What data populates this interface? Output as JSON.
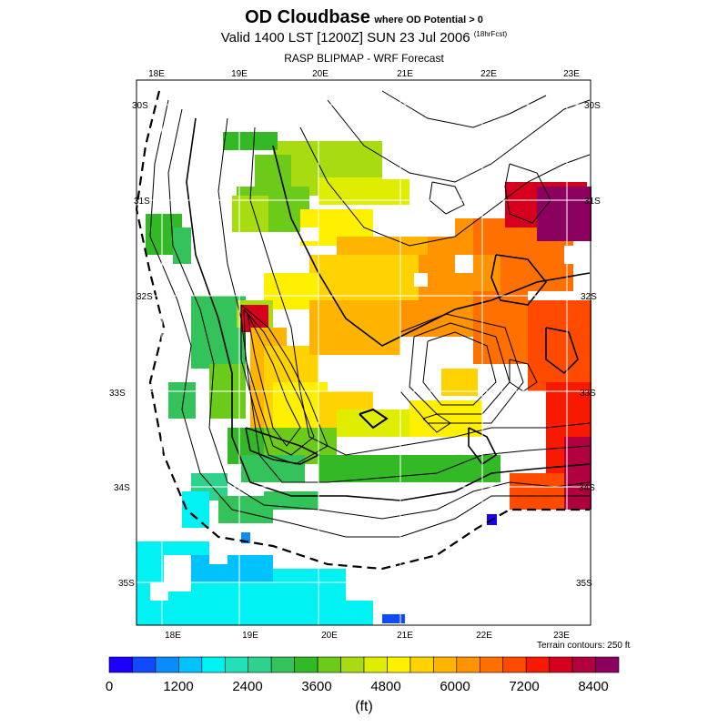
{
  "header": {
    "title": "OD Cloudbase",
    "title_qualifier": "where OD Potential > 0",
    "valid_line": "Valid 1400 LST [1200Z] SUN 23 Jul 2006",
    "forecast_hours": "(18hrFcst)",
    "model_line": "RASP BLIPMAP - WRF Forecast"
  },
  "map": {
    "lon_labels_top": [
      "18E",
      "19E",
      "20E",
      "21E",
      "22E",
      "23E"
    ],
    "lon_labels_bottom": [
      "18E",
      "19E",
      "20E",
      "21E",
      "22E",
      "23E"
    ],
    "lat_labels_left": [
      "30S",
      "31S",
      "32S",
      "33S",
      "34S",
      "35S"
    ],
    "lat_labels_right": [
      "30S",
      "31S",
      "32S",
      "33S",
      "34S",
      "35S"
    ],
    "terrain_note": "Terrain contours: 250 ft"
  },
  "colorbar": {
    "colors": [
      "#1a00ff",
      "#0f4aff",
      "#0a8cff",
      "#00c2ff",
      "#00f2f2",
      "#22e0b8",
      "#2ed28c",
      "#33c35a",
      "#33b826",
      "#6ccb1a",
      "#a8dc10",
      "#dfee00",
      "#fff000",
      "#ffd200",
      "#ffb400",
      "#ff9400",
      "#ff7000",
      "#ff4a00",
      "#f71a00",
      "#d6001e",
      "#b00040",
      "#8c0060"
    ],
    "tick_labels": [
      "0",
      "1200",
      "2400",
      "3600",
      "4800",
      "6000",
      "7200",
      "8400"
    ],
    "unit_label": "(ft)"
  }
}
